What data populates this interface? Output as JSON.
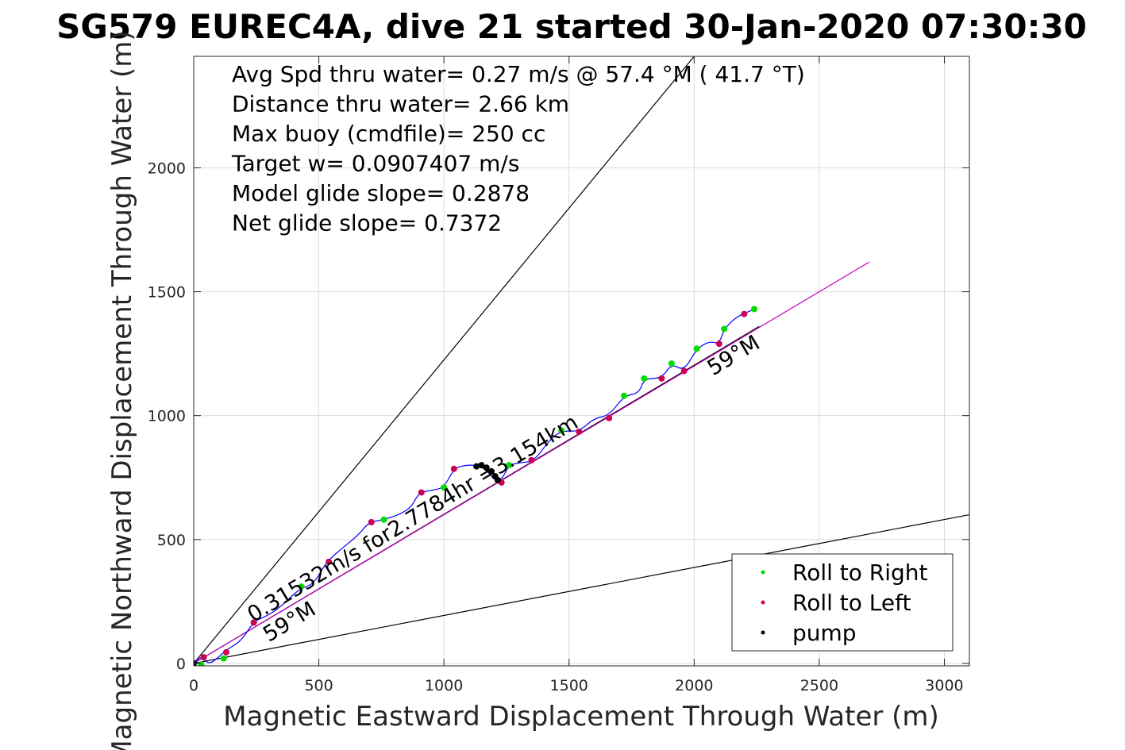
{
  "chart_data": {
    "type": "scatter",
    "title": "SG579 EUREC4A, dive 21 started 30-Jan-2020 07:30:30",
    "xlabel": "Magnetic Eastward Displacement Through Water (m)",
    "ylabel": "Magnetic Northward Displacement Through Water (m)",
    "xlim": [
      0,
      3100
    ],
    "ylim": [
      -10,
      2450
    ],
    "xticks": [
      0,
      500,
      1000,
      1500,
      2000,
      2500,
      3000
    ],
    "yticks": [
      0,
      500,
      1000,
      1500,
      2000
    ],
    "grid": true,
    "legend_position": "bottom-right",
    "stats": [
      "Avg Spd thru water=  0.27 m/s @  57.4 °M ( 41.7 °T)",
      "Distance thru water=  2.66 km",
      "Max buoy (cmdfile)= 250 cc",
      "Target w= 0.0907407 m/s",
      "Model glide slope= 0.2878",
      "Net glide slope= 0.7372"
    ],
    "annotations": [
      {
        "text": "0.31532m/s for2.7784hr =3.154km",
        "x": 237,
        "y": 165,
        "angle_deg": 31
      },
      {
        "text": "59°M",
        "x": 300,
        "y": 85,
        "angle_deg": 31
      },
      {
        "text": "59°M",
        "x": 2075,
        "y": 1160,
        "angle_deg": 31
      }
    ],
    "reference_lines": [
      {
        "name": "glide-cone-upper",
        "color": "#000000",
        "x": [
          0,
          2000
        ],
        "y": [
          0,
          2450
        ]
      },
      {
        "name": "glide-cone-lower",
        "color": "#000000",
        "x": [
          0,
          3100
        ],
        "y": [
          0,
          600
        ]
      },
      {
        "name": "net-track",
        "color": "#000000",
        "x": [
          0,
          2260
        ],
        "y": [
          0,
          1360
        ]
      },
      {
        "name": "current-vector",
        "color": "#c000c0",
        "x": [
          0,
          2700
        ],
        "y": [
          0,
          1620
        ]
      }
    ],
    "track": {
      "color": "#0000ff",
      "x": [
        0,
        30,
        60,
        100,
        130,
        190,
        240,
        290,
        350,
        420,
        480,
        530,
        600,
        660,
        700,
        760,
        820,
        870,
        900,
        960,
        1000,
        1040,
        1080,
        1140,
        1180,
        1200,
        1230,
        1260,
        1300,
        1360,
        1420,
        1470,
        1540,
        1600,
        1660,
        1720,
        1780,
        1800,
        1870,
        1910,
        1960,
        2010,
        2060,
        2100,
        2120,
        2170,
        2230
      ],
      "y": [
        0,
        30,
        -5,
        25,
        55,
        90,
        170,
        190,
        230,
        300,
        320,
        410,
        470,
        520,
        570,
        580,
        600,
        630,
        690,
        700,
        710,
        785,
        800,
        800,
        770,
        740,
        740,
        800,
        810,
        815,
        900,
        940,
        935,
        990,
        1000,
        1080,
        1090,
        1150,
        1150,
        1210,
        1180,
        1270,
        1300,
        1290,
        1350,
        1400,
        1425
      ]
    },
    "series": [
      {
        "name": "Roll to Right",
        "color": "#00dd00",
        "x": [
          30,
          120,
          430,
          760,
          1000,
          1260,
          1470,
          1720,
          1800,
          1910,
          2010,
          2120,
          2240
        ],
        "y": [
          -5,
          20,
          310,
          580,
          710,
          800,
          940,
          1080,
          1150,
          1210,
          1270,
          1350,
          1430
        ]
      },
      {
        "name": "Roll to Left",
        "color": "#cc0055",
        "x": [
          40,
          130,
          240,
          540,
          710,
          910,
          1040,
          1230,
          1350,
          1540,
          1660,
          1870,
          1960,
          2100,
          2200
        ],
        "y": [
          25,
          45,
          165,
          410,
          570,
          690,
          785,
          730,
          820,
          935,
          990,
          1150,
          1180,
          1290,
          1410
        ]
      },
      {
        "name": "pump",
        "color": "#000000",
        "x": [
          0,
          1130,
          1150,
          1170,
          1190,
          1205,
          1215
        ],
        "y": [
          0,
          795,
          800,
          790,
          775,
          755,
          740
        ]
      }
    ]
  }
}
